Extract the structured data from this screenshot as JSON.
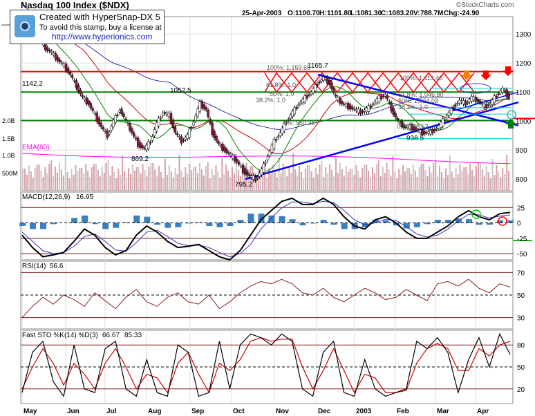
{
  "header": {
    "title": "Nasdaq 100 Index ($NDX)",
    "copyright": "©StockCharts.com",
    "date": "25-Apr-2003",
    "open": "1100.70",
    "high": "1101.80",
    "low": "1081.30",
    "close": "1083.20",
    "volume": "788.7M",
    "change": "-24.90"
  },
  "stamp": {
    "line1": "Created with HyperSnap-DX 5",
    "line2": "To avoid this stamp, buy a license at",
    "url": "http://www.hyperionics.com"
  },
  "colors": {
    "resistance": "#ff0000",
    "support": "#008000",
    "trend": "#0000ff",
    "ema": "#ff00ff",
    "price_up": "#ffffff",
    "price_down": "#8b1a3a",
    "volume": "#d8a0a8"
  },
  "chart_data": [
    {
      "panel": "price",
      "type": "candlestick",
      "title": "Nasdaq 100 Index ($NDX)",
      "ylim": [
        760,
        1360
      ],
      "y_ticks": [
        1300,
        1200,
        1100,
        1000,
        900,
        800
      ],
      "x_months": [
        "May",
        "Jun",
        "Jul",
        "Aug",
        "Sep",
        "Oct",
        "Nov",
        "Dec",
        "2003",
        "Feb",
        "Mar",
        "Apr"
      ],
      "price_path": [
        1360,
        1330,
        1300,
        1280,
        1250,
        1235,
        1210,
        1190,
        1160,
        1120,
        1080,
        1060,
        1020,
        980,
        950,
        1000,
        1040,
        1000,
        960,
        920,
        905,
        930,
        990,
        1030,
        1020,
        960,
        930,
        950,
        1000,
        1060,
        1040,
        960,
        920,
        900,
        880,
        860,
        830,
        810,
        800,
        830,
        880,
        930,
        960,
        1000,
        1030,
        1060,
        1080,
        1100,
        1130,
        1150,
        1130,
        1080,
        1060,
        1050,
        1040,
        1030,
        1040,
        1060,
        1080,
        1090,
        1040,
        1000,
        980,
        980,
        970,
        960,
        960,
        970,
        990,
        1020,
        1050,
        1070,
        1060,
        1080,
        1070,
        1050,
        1060,
        1090,
        1110,
        1083
      ],
      "price_labels": [
        {
          "label": "1165.7"
        },
        {
          "label": "1142.2"
        },
        {
          "label": "1052.5"
        },
        {
          "label": "869.2"
        },
        {
          "label": "795.2"
        },
        {
          "label": "938.5"
        }
      ],
      "horizontal_lines": [
        {
          "value": 1165.7,
          "color": "red"
        },
        {
          "value": 1100,
          "color": "green"
        },
        {
          "value": 1002,
          "color": "green"
        },
        {
          "value": 1002,
          "color": "red-right"
        }
      ],
      "fibonacci": [
        {
          "label": "100%: 1,159.65"
        },
        {
          "label": "61.8%: 1,0"
        },
        {
          "label": "50%: 1,0"
        },
        {
          "label": "38.2%: 1,0"
        },
        {
          "label": "0%: 950.36"
        },
        {
          "label": "100%: 1,113.46"
        },
        {
          "label": "61.8%: 1,046.80"
        },
        {
          "label": "50%: 1,024.03"
        },
        {
          "label": "38.2%: 1,0"
        },
        {
          "label": "0%: 938.53"
        }
      ],
      "ema_label": "EMA(60)",
      "volume_ticks": [
        "2.0B",
        "1.5B",
        "1.0B",
        "500M"
      ]
    },
    {
      "panel": "macd",
      "type": "line",
      "title": "MACD(12,26,9)",
      "value_label": "16.95",
      "ylim": [
        -60,
        50
      ],
      "y_ticks": [
        25,
        0,
        -25,
        -50
      ],
      "macd": [
        -20,
        -40,
        -55,
        -52,
        -48,
        -30,
        -10,
        -20,
        -40,
        -52,
        -45,
        -20,
        -5,
        -15,
        -30,
        -40,
        -38,
        -35,
        -45,
        -55,
        -60,
        -45,
        -20,
        5,
        20,
        35,
        40,
        30,
        30,
        40,
        30,
        10,
        -5,
        -10,
        5,
        10,
        0,
        -15,
        -25,
        -25,
        -15,
        -5,
        10,
        20,
        10,
        5,
        15,
        17
      ],
      "signal": [
        -15,
        -30,
        -45,
        -50,
        -48,
        -38,
        -22,
        -18,
        -30,
        -44,
        -46,
        -32,
        -15,
        -12,
        -22,
        -33,
        -37,
        -36,
        -40,
        -48,
        -55,
        -50,
        -35,
        -10,
        8,
        24,
        34,
        34,
        31,
        35,
        33,
        20,
        5,
        -3,
        0,
        6,
        4,
        -6,
        -18,
        -23,
        -20,
        -10,
        3,
        14,
        13,
        8,
        11,
        13
      ]
    },
    {
      "panel": "rsi",
      "type": "line",
      "title": "RSI(14)",
      "value_label": "56.6",
      "ylim": [
        20,
        80
      ],
      "y_ticks": [
        70,
        50,
        30
      ],
      "rsi": [
        30,
        40,
        48,
        42,
        50,
        46,
        40,
        52,
        45,
        38,
        48,
        55,
        44,
        40,
        48,
        52,
        44,
        42,
        50,
        38,
        44,
        52,
        58,
        62,
        60,
        64,
        60,
        52,
        50,
        56,
        48,
        44,
        50,
        56,
        52,
        46,
        48,
        55,
        50,
        45,
        60,
        62,
        58,
        64,
        56,
        52,
        60,
        57
      ]
    },
    {
      "panel": "stochastic",
      "type": "line",
      "title": "Fast STO %K(14) %D(3)",
      "k_label": "66.67",
      "d_label": "85.33",
      "ylim": [
        0,
        100
      ],
      "y_ticks": [
        80,
        50,
        20
      ],
      "k": [
        15,
        70,
        85,
        30,
        10,
        80,
        20,
        15,
        75,
        85,
        20,
        10,
        60,
        15,
        10,
        80,
        70,
        10,
        15,
        85,
        20,
        80,
        95,
        90,
        80,
        95,
        85,
        20,
        10,
        70,
        85,
        15,
        10,
        60,
        20,
        10,
        15,
        20,
        85,
        75,
        90,
        70,
        15,
        60,
        90,
        50,
        95,
        67
      ],
      "d": [
        20,
        50,
        75,
        55,
        25,
        55,
        40,
        20,
        55,
        75,
        50,
        20,
        40,
        35,
        15,
        55,
        70,
        40,
        15,
        55,
        45,
        60,
        85,
        90,
        85,
        88,
        88,
        50,
        20,
        45,
        75,
        45,
        15,
        40,
        35,
        15,
        15,
        18,
        55,
        75,
        82,
        75,
        45,
        45,
        75,
        65,
        80,
        85
      ]
    }
  ]
}
